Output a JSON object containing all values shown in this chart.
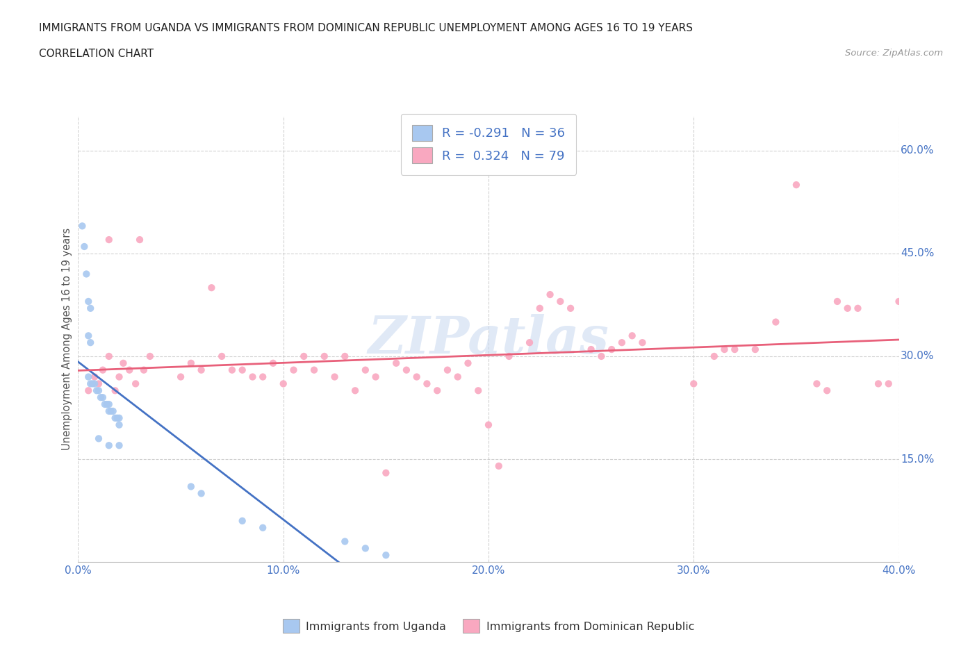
{
  "title_line1": "IMMIGRANTS FROM UGANDA VS IMMIGRANTS FROM DOMINICAN REPUBLIC UNEMPLOYMENT AMONG AGES 16 TO 19 YEARS",
  "title_line2": "CORRELATION CHART",
  "source_text": "Source: ZipAtlas.com",
  "legend_label1": "Immigrants from Uganda",
  "legend_label2": "Immigrants from Dominican Republic",
  "r1": -0.291,
  "n1": 36,
  "r2": 0.324,
  "n2": 79,
  "color_uganda": "#a8c8f0",
  "color_dr": "#f9a8c0",
  "color_uganda_line": "#4472c4",
  "color_dr_line": "#e8607a",
  "color_text_blue": "#4472c4",
  "color_axis_label": "#555555",
  "watermark_color": "#c8d8f0",
  "bg_color": "#ffffff",
  "grid_color": "#cccccc",
  "xlim": [
    0.0,
    0.4
  ],
  "ylim": [
    0.0,
    0.65
  ],
  "ytick_vals": [
    0.15,
    0.3,
    0.45,
    0.6
  ],
  "ytick_labels": [
    "15.0%",
    "30.0%",
    "45.0%",
    "60.0%"
  ],
  "xtick_vals": [
    0.0,
    0.1,
    0.2,
    0.3,
    0.4
  ],
  "xtick_labels": [
    "0.0%",
    "10.0%",
    "20.0%",
    "30.0%",
    "40.0%"
  ]
}
